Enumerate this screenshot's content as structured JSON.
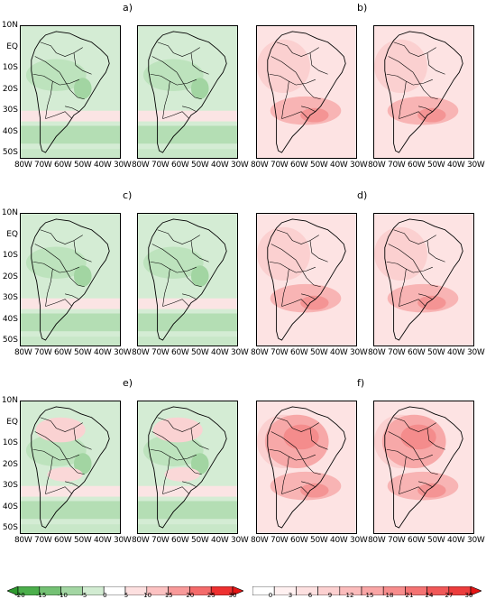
{
  "panel_labels": [
    "a)",
    "b)",
    "c)",
    "d)",
    "e)",
    "f)"
  ],
  "lat_labels": [
    "10N",
    "EQ",
    "10S",
    "20S",
    "30S",
    "40S",
    "50S"
  ],
  "lon_labels": "80W 70W 60W 50W 40W 30W",
  "colorbar_left": {
    "ticks": [
      "-20",
      "-15",
      "-10",
      "-5",
      "0",
      "5",
      "10",
      "15",
      "20",
      "25",
      "30"
    ],
    "colors": [
      "#2e9a2e",
      "#4caf4c",
      "#74c174",
      "#a3d6a3",
      "#d2ecd2",
      "#ffffff",
      "#fde0e0",
      "#fcc2c2",
      "#f89a9a",
      "#f46b6b",
      "#ee3030",
      "#e51515"
    ]
  },
  "colorbar_right": {
    "ticks": [
      "0",
      "3",
      "6",
      "9",
      "12",
      "15",
      "18",
      "21",
      "24",
      "27",
      "30"
    ],
    "colors": [
      "#ffffff",
      "#fff0f0",
      "#fde0e0",
      "#fcd0d0",
      "#fbbcbc",
      "#f9a6a6",
      "#f78d8d",
      "#f47373",
      "#f05858",
      "#ec3d3d",
      "#e51515"
    ]
  }
}
